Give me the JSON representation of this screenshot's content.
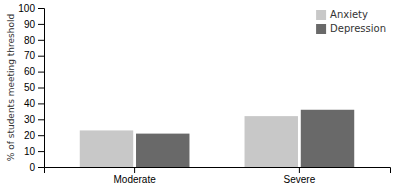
{
  "chart_data": {
    "type": "bar",
    "categories": [
      "Moderate",
      "Severe"
    ],
    "series": [
      {
        "name": "Anxiety",
        "color": "#c8c8c8",
        "values": [
          23,
          32
        ]
      },
      {
        "name": "Depression",
        "color": "#696969",
        "values": [
          21,
          36
        ]
      }
    ],
    "ylabel": "% of students meeting threshold",
    "ylim": [
      0,
      100
    ],
    "yticks": [
      0,
      10,
      20,
      30,
      40,
      50,
      60,
      70,
      80,
      90,
      100
    ],
    "grid": false,
    "legend": "upper right"
  }
}
